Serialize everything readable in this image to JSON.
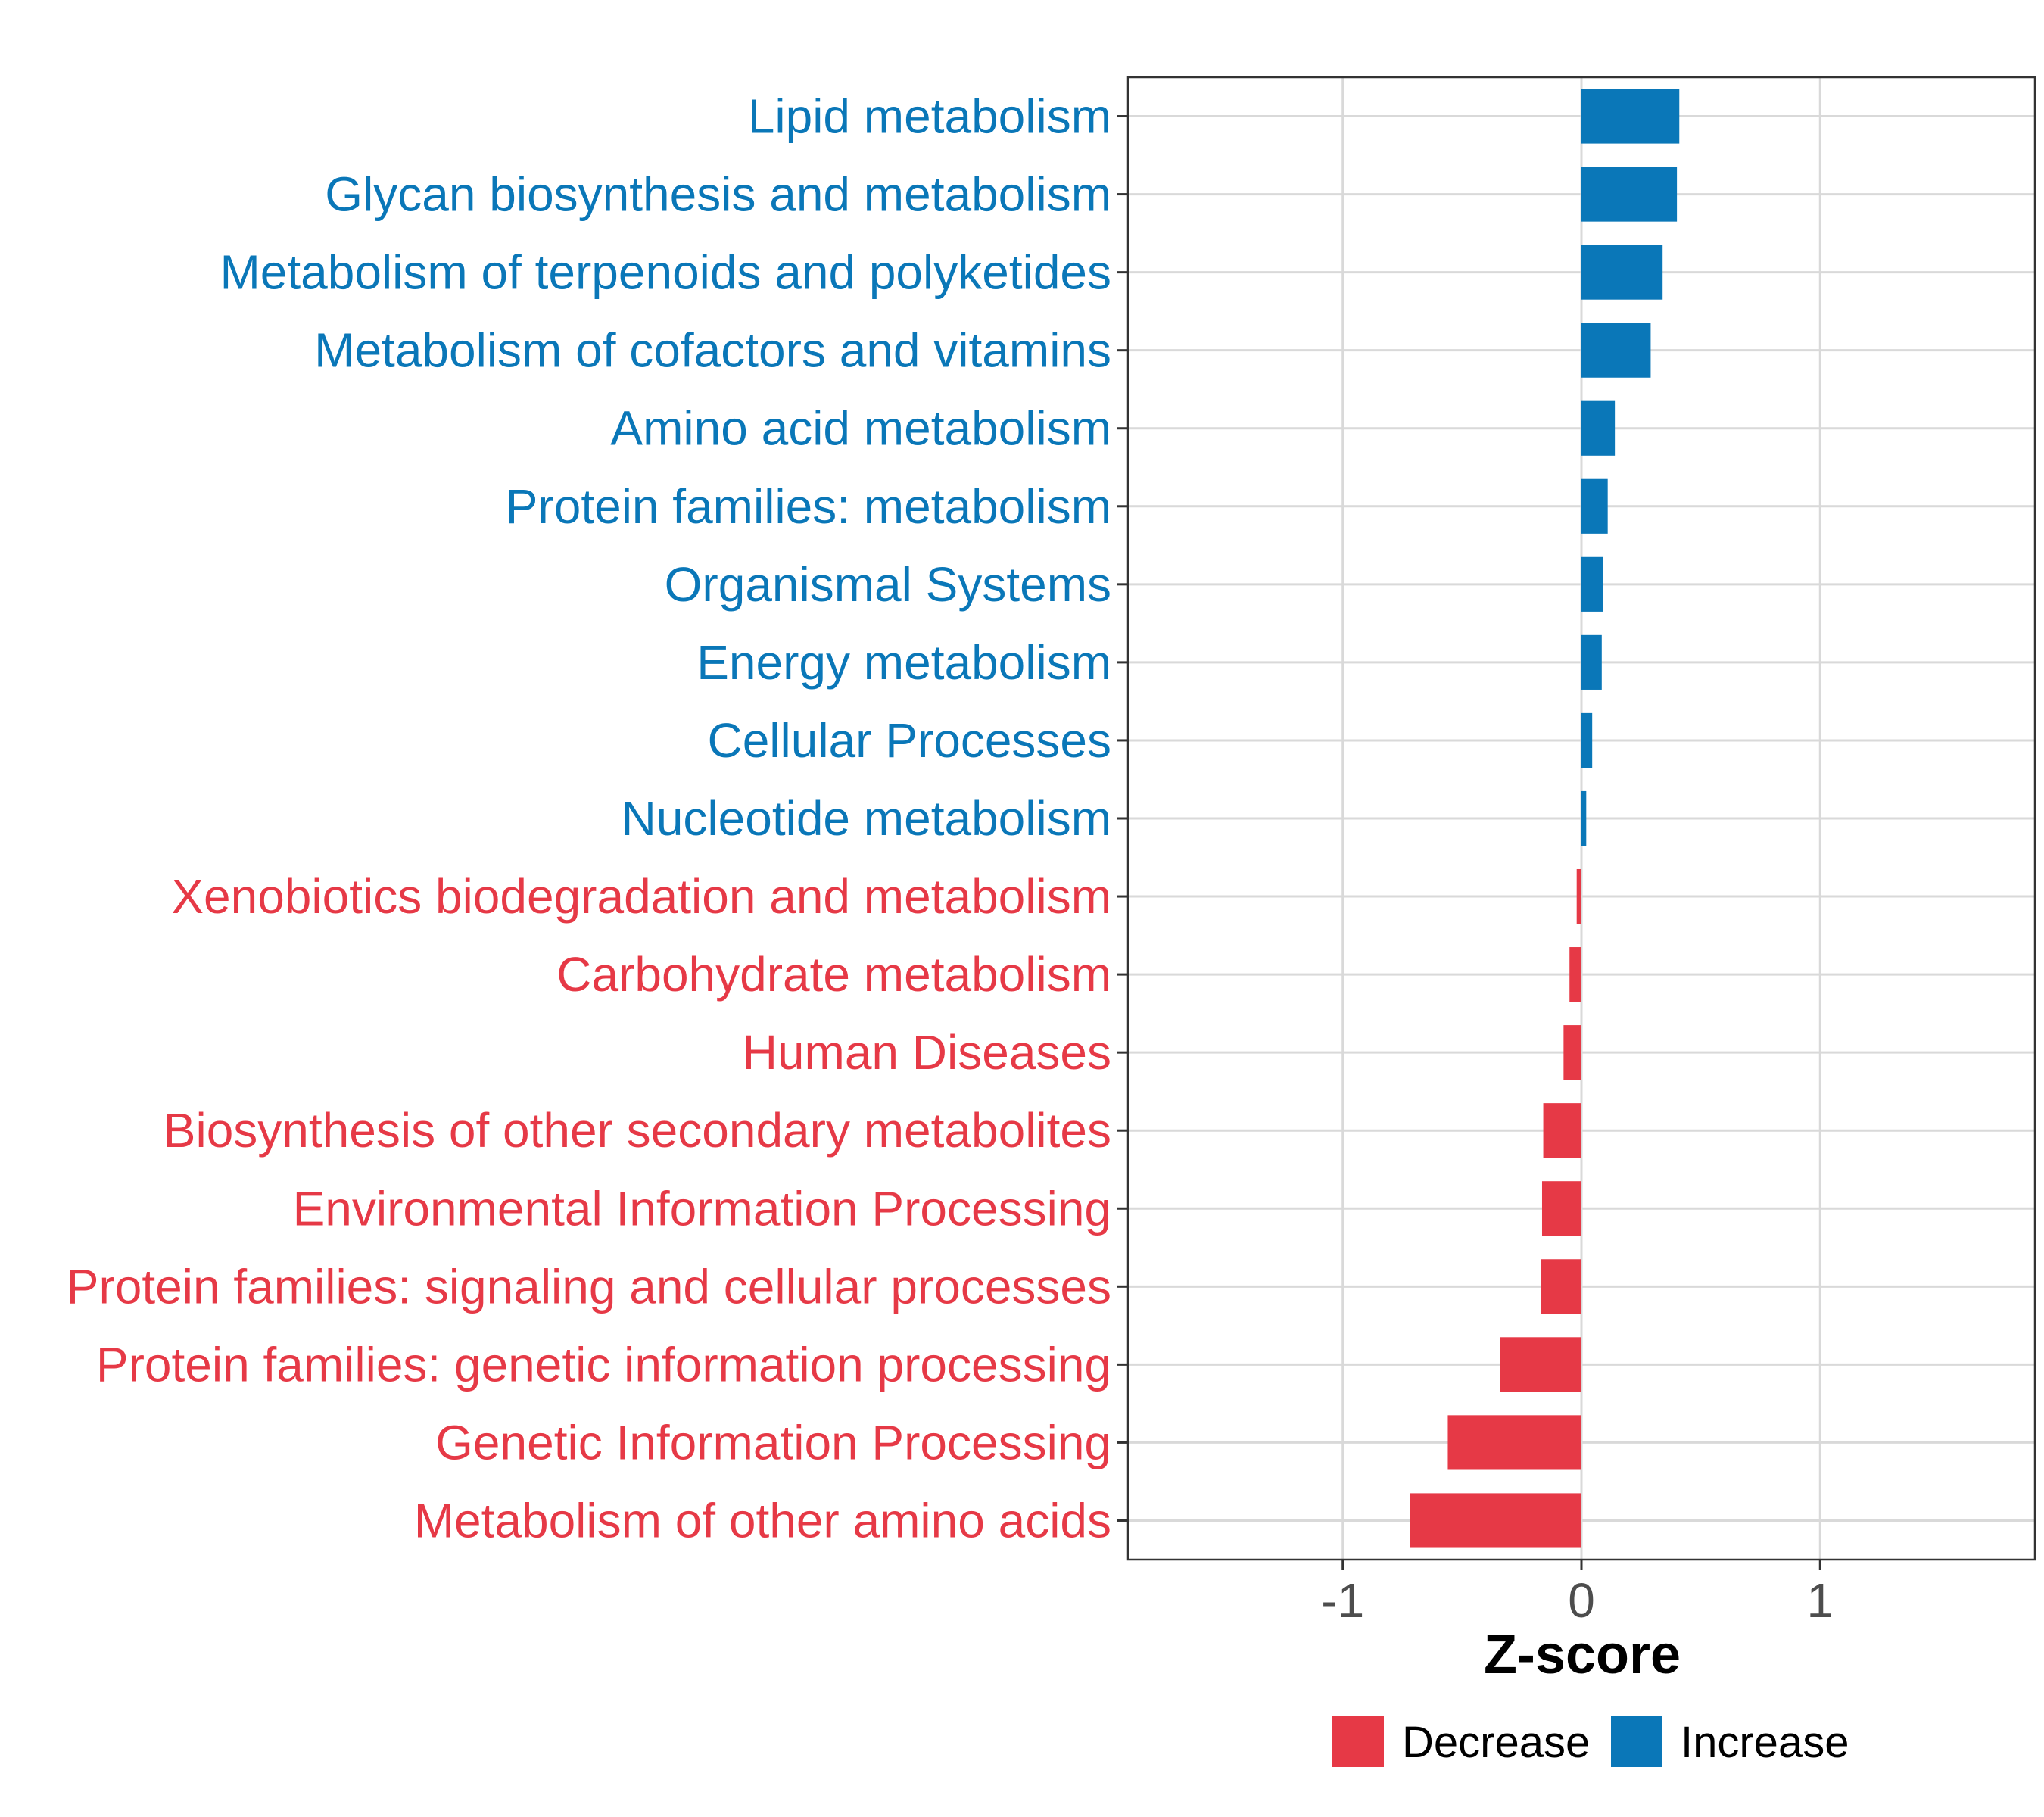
{
  "chart_data": {
    "type": "bar",
    "orientation": "horizontal",
    "title": "",
    "xlabel": "Z-score",
    "ylabel": "",
    "xlim": [
      -1.9,
      1.9
    ],
    "xticks": [
      -1,
      0,
      1
    ],
    "xtick_labels": [
      "-1",
      "0",
      "1"
    ],
    "grid": true,
    "colors": {
      "Decrease": "#e63946",
      "Increase": "#0a77b8"
    },
    "categories": [
      "Lipid metabolism",
      "Glycan biosynthesis and metabolism",
      "Metabolism of terpenoids and polyketides",
      "Metabolism of cofactors and vitamins",
      "Amino acid metabolism",
      "Protein families: metabolism",
      "Organismal Systems",
      "Energy metabolism",
      "Cellular Processes",
      "Nucleotide metabolism",
      "Xenobiotics biodegradation and metabolism",
      "Carbohydrate metabolism",
      "Human Diseases",
      "Biosynthesis of other secondary metabolites",
      "Environmental Information Processing",
      "Protein families: signaling and cellular processes",
      "Protein families: genetic information processing",
      "Genetic Information Processing",
      "Metabolism of other amino acids"
    ],
    "values": [
      0.41,
      0.4,
      0.34,
      0.29,
      0.14,
      0.11,
      0.09,
      0.085,
      0.045,
      0.02,
      -0.02,
      -0.05,
      -0.075,
      -0.16,
      -0.165,
      -0.17,
      -0.34,
      -0.56,
      -0.72
    ],
    "groups": [
      "Increase",
      "Increase",
      "Increase",
      "Increase",
      "Increase",
      "Increase",
      "Increase",
      "Increase",
      "Increase",
      "Increase",
      "Decrease",
      "Decrease",
      "Decrease",
      "Decrease",
      "Decrease",
      "Decrease",
      "Decrease",
      "Decrease",
      "Decrease"
    ],
    "legend": {
      "position": "bottom",
      "entries": [
        "Decrease",
        "Increase"
      ]
    }
  }
}
